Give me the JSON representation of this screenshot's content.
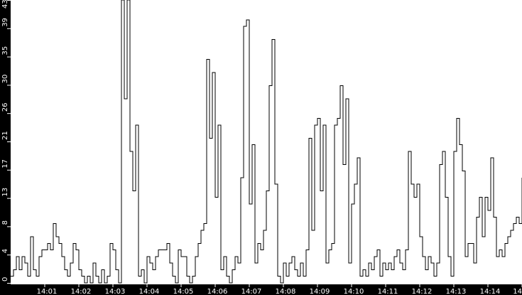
{
  "chart_data": {
    "type": "line",
    "line_style": "step",
    "colors": {
      "line": "#000000",
      "axis_background": "#000000",
      "axis_text": "#ffffff",
      "plot_background": "#ffffff"
    },
    "x_range": [
      "14:00:00",
      "14:15:00"
    ],
    "ylim": [
      0,
      43
    ],
    "grid": false,
    "x_tick_labels": [
      "14:01",
      "14:02",
      "14:03",
      "14:04",
      "14:05",
      "14:06",
      "14:07",
      "14:08",
      "14:09",
      "14:10",
      "14:11",
      "14:12",
      "14:13",
      "14:14",
      "14"
    ],
    "y_tick_labels": [
      "0",
      "4",
      "8",
      "13",
      "17",
      "21",
      "26",
      "30",
      "35",
      "39",
      "43"
    ],
    "series": [
      {
        "values": [
          1,
          2,
          4,
          2,
          4,
          3,
          1,
          7,
          2,
          1,
          4,
          5,
          5,
          6,
          5,
          9,
          7,
          6,
          4,
          2,
          1,
          3,
          6,
          5,
          2,
          1,
          0,
          1,
          0,
          3,
          1,
          0,
          2,
          0,
          1,
          6,
          5,
          2,
          0,
          43,
          28,
          43,
          20,
          14,
          24,
          1,
          2,
          0,
          4,
          3,
          2,
          4,
          5,
          5,
          5,
          6,
          3,
          1,
          0,
          5,
          4,
          4,
          1,
          0,
          1,
          4,
          6,
          8,
          9,
          34,
          22,
          32,
          13,
          24,
          2,
          4,
          1,
          0,
          2,
          4,
          3,
          16,
          39,
          40,
          12,
          21,
          3,
          6,
          5,
          8,
          14,
          30,
          37,
          15,
          1,
          0,
          3,
          1,
          3,
          4,
          2,
          1,
          3,
          1,
          5,
          22,
          8,
          24,
          25,
          14,
          24,
          3,
          5,
          6,
          24,
          25,
          30,
          18,
          28,
          3,
          12,
          15,
          19,
          1,
          2,
          1,
          3,
          2,
          4,
          5,
          1,
          3,
          2,
          3,
          2,
          4,
          5,
          3,
          2,
          5,
          20,
          15,
          13,
          15,
          7,
          4,
          2,
          4,
          3,
          1,
          3,
          18,
          20,
          13,
          4,
          1,
          20,
          25,
          21,
          17,
          4,
          6,
          6,
          3,
          10,
          13,
          7,
          13,
          11,
          19,
          10,
          4,
          5,
          4,
          6,
          7,
          8,
          9,
          10,
          9,
          16
        ]
      }
    ]
  }
}
